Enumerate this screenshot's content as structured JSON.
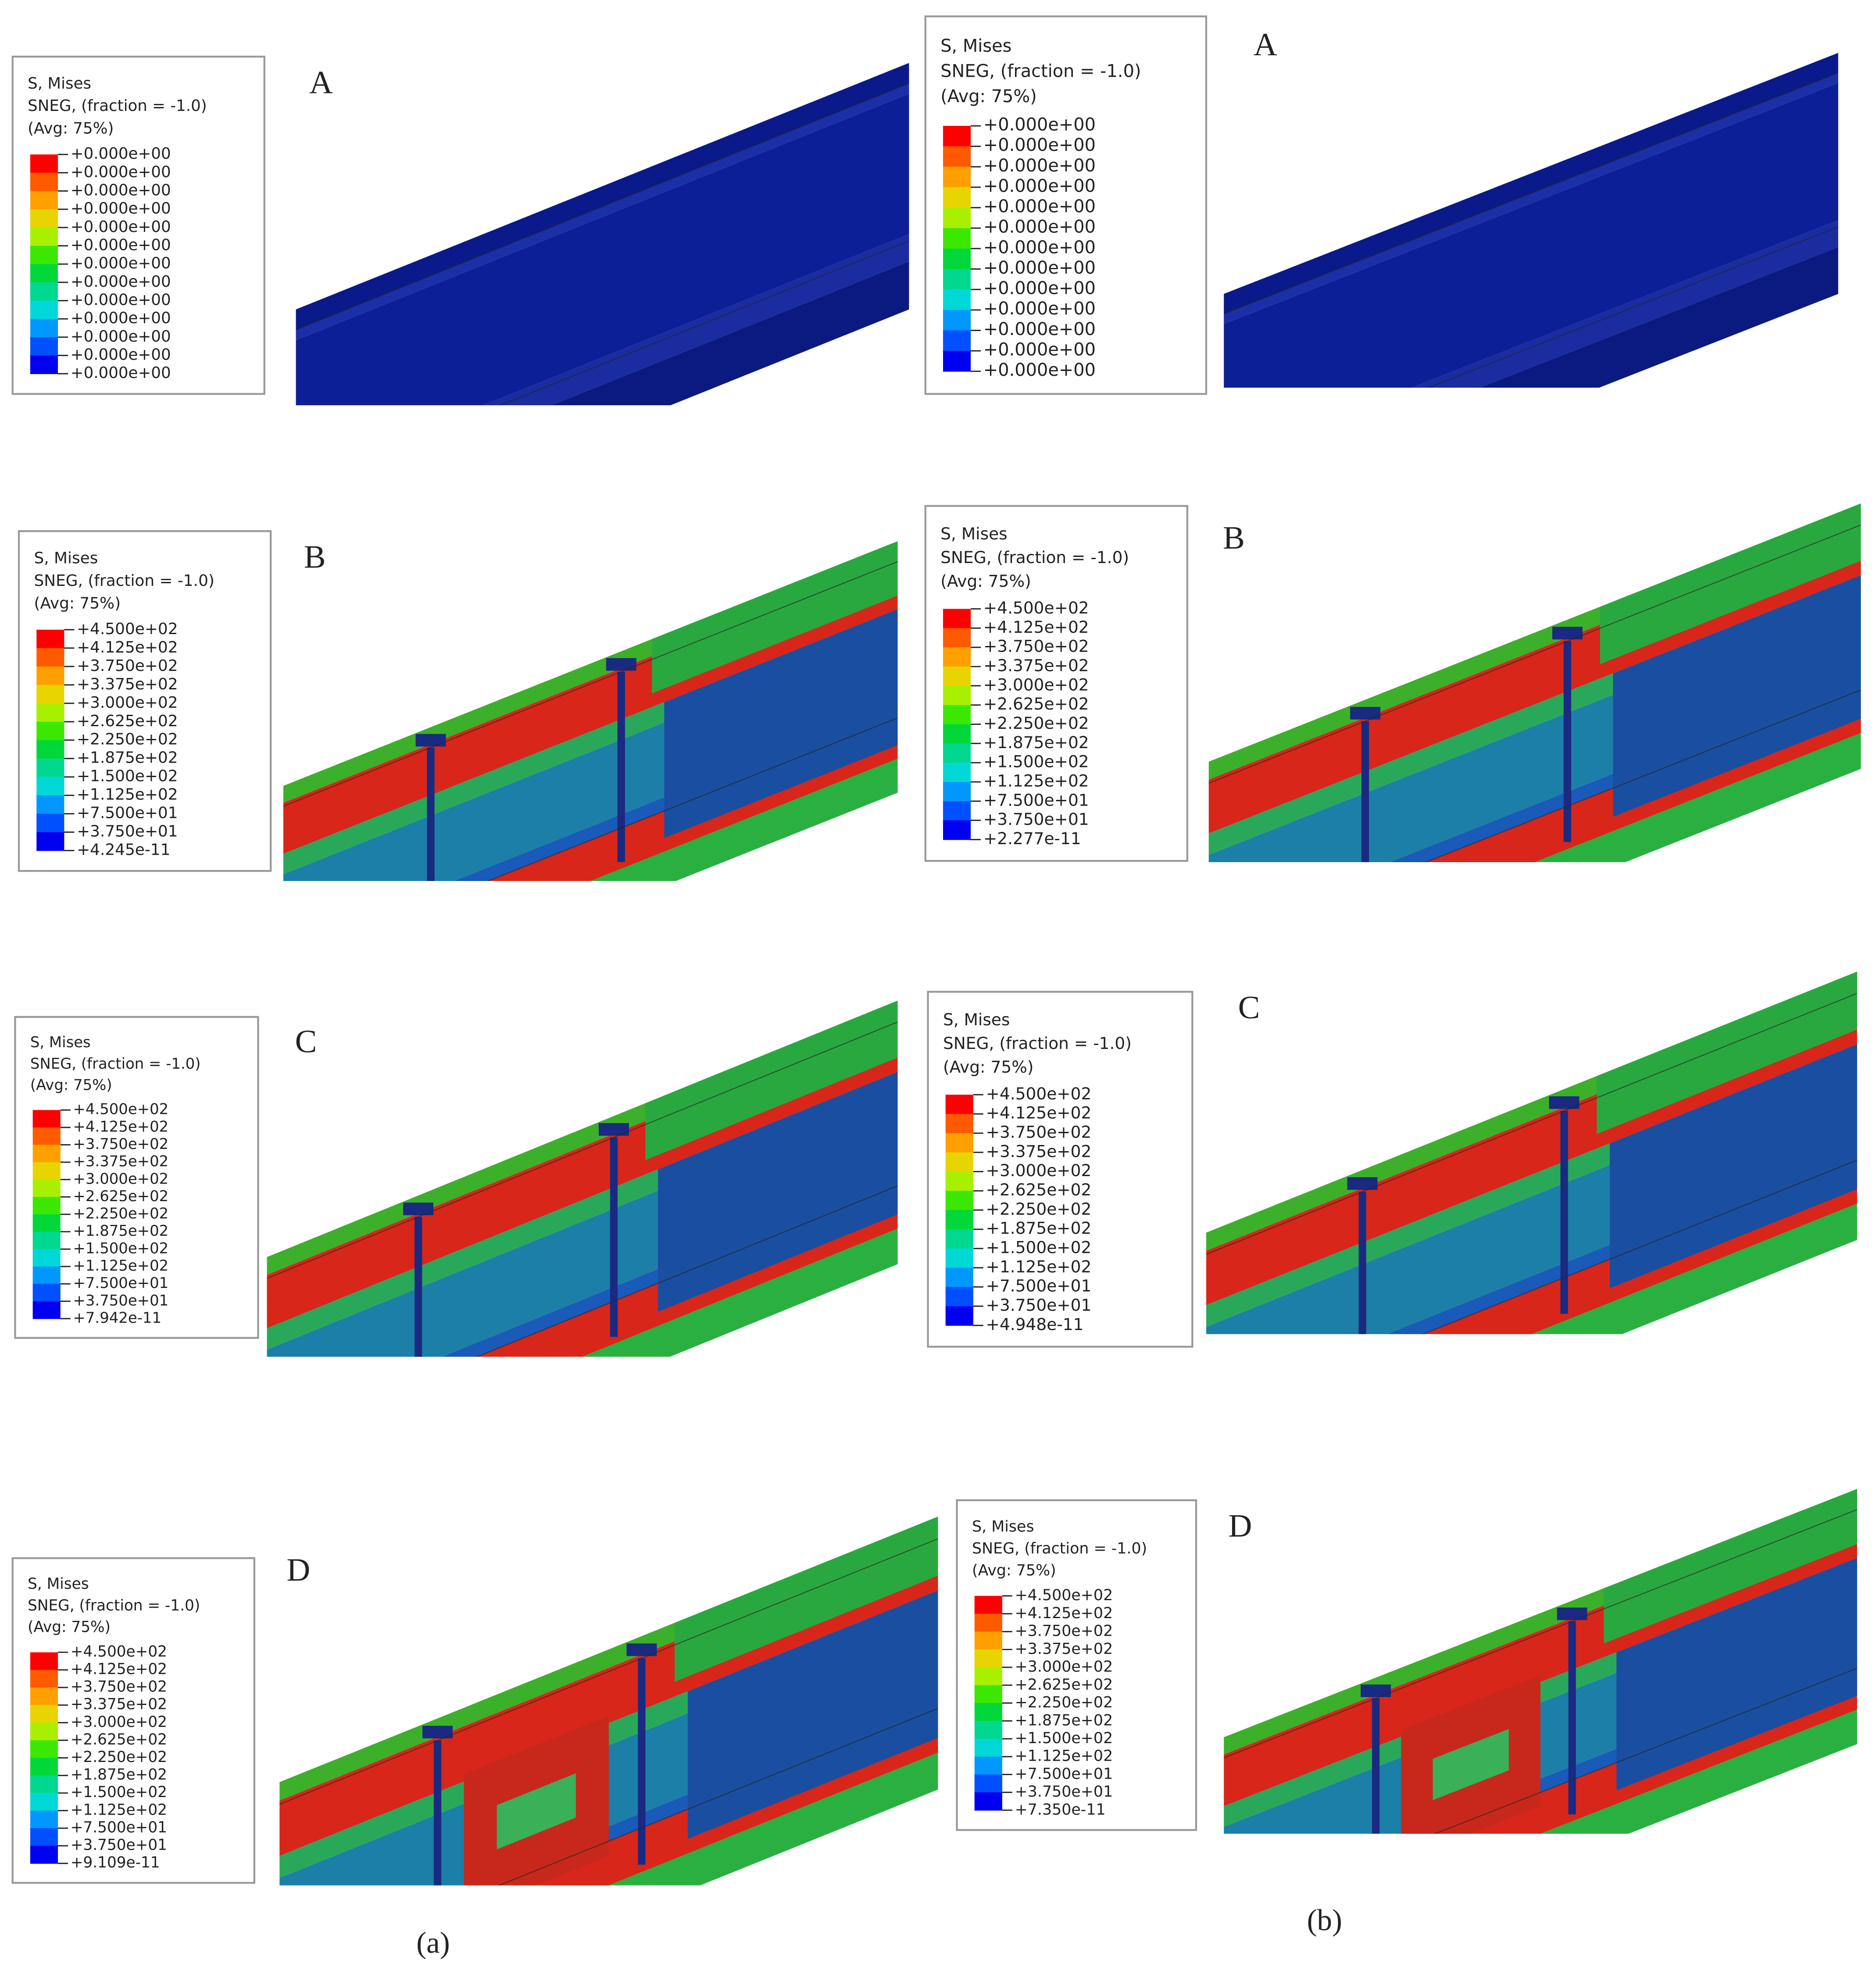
{
  "panels": [
    {
      "label": "A",
      "legend": {
        "lines": [
          "S, Mises",
          "SNEG, (fraction = -1.0)",
          "(Avg: 75%)"
        ],
        "values": [
          "+0.000e+00",
          "+0.000e+00",
          "+0.000e+00",
          "+0.000e+00",
          "+0.000e+00",
          "+0.000e+00",
          "+0.000e+00",
          "+0.000e+00",
          "+0.000e+00",
          "+0.000e+00",
          "+0.000e+00",
          "+0.000e+00",
          "+0.000e+00"
        ]
      }
    },
    {
      "label": "B",
      "legend": {
        "lines": [
          "S, Mises",
          "SNEG, (fraction = -1.0)",
          "(Avg: 75%)"
        ],
        "values": [
          "+4.500e+02",
          "+4.125e+02",
          "+3.750e+02",
          "+3.375e+02",
          "+3.000e+02",
          "+2.625e+02",
          "+2.250e+02",
          "+1.875e+02",
          "+1.500e+02",
          "+1.125e+02",
          "+7.500e+01",
          "+3.750e+01",
          "+4.245e-11"
        ]
      }
    },
    {
      "label": "C",
      "legend": {
        "lines": [
          "S, Mises",
          "SNEG, (fraction = -1.0)",
          "(Avg: 75%)"
        ],
        "values": [
          "+4.500e+02",
          "+4.125e+02",
          "+3.750e+02",
          "+3.375e+02",
          "+3.000e+02",
          "+2.625e+02",
          "+2.250e+02",
          "+1.875e+02",
          "+1.500e+02",
          "+1.125e+02",
          "+7.500e+01",
          "+3.750e+01",
          "+7.942e-11"
        ]
      }
    },
    {
      "label": "D",
      "legend": {
        "lines": [
          "S, Mises",
          "SNEG, (fraction = -1.0)",
          "(Avg: 75%)"
        ],
        "values": [
          "+4.500e+02",
          "+4.125e+02",
          "+3.750e+02",
          "+3.375e+02",
          "+3.000e+02",
          "+2.625e+02",
          "+2.250e+02",
          "+1.875e+02",
          "+1.500e+02",
          "+1.125e+02",
          "+7.500e+01",
          "+3.750e+01",
          "+9.109e-11"
        ]
      }
    },
    {
      "label": "A",
      "legend": {
        "lines": [
          "S, Mises",
          "SNEG, (fraction = -1.0)",
          "(Avg: 75%)"
        ],
        "values": [
          "+0.000e+00",
          "+0.000e+00",
          "+0.000e+00",
          "+0.000e+00",
          "+0.000e+00",
          "+0.000e+00",
          "+0.000e+00",
          "+0.000e+00",
          "+0.000e+00",
          "+0.000e+00",
          "+0.000e+00",
          "+0.000e+00",
          "+0.000e+00"
        ]
      }
    },
    {
      "label": "B",
      "legend": {
        "lines": [
          "S, Mises",
          "SNEG, (fraction = -1.0)",
          "(Avg: 75%)"
        ],
        "values": [
          "+4.500e+02",
          "+4.125e+02",
          "+3.750e+02",
          "+3.375e+02",
          "+3.000e+02",
          "+2.625e+02",
          "+2.250e+02",
          "+1.875e+02",
          "+1.500e+02",
          "+1.125e+02",
          "+7.500e+01",
          "+3.750e+01",
          "+2.277e-11"
        ]
      }
    },
    {
      "label": "C",
      "legend": {
        "lines": [
          "S, Mises",
          "SNEG, (fraction = -1.0)",
          "(Avg: 75%)"
        ],
        "values": [
          "+4.500e+02",
          "+4.125e+02",
          "+3.750e+02",
          "+3.375e+02",
          "+3.000e+02",
          "+2.625e+02",
          "+2.250e+02",
          "+1.875e+02",
          "+1.500e+02",
          "+1.125e+02",
          "+7.500e+01",
          "+3.750e+01",
          "+4.948e-11"
        ]
      }
    },
    {
      "label": "D",
      "legend": {
        "lines": [
          "S, Mises",
          "SNEG, (fraction = -1.0)",
          "(Avg: 75%)"
        ],
        "values": [
          "+4.500e+02",
          "+4.125e+02",
          "+3.750e+02",
          "+3.375e+02",
          "+3.000e+02",
          "+2.625e+02",
          "+2.250e+02",
          "+1.875e+02",
          "+1.500e+02",
          "+1.125e+02",
          "+7.500e+01",
          "+3.750e+01",
          "+7.350e-11"
        ]
      }
    }
  ],
  "captions": [
    "(a)",
    "(b)"
  ]
}
